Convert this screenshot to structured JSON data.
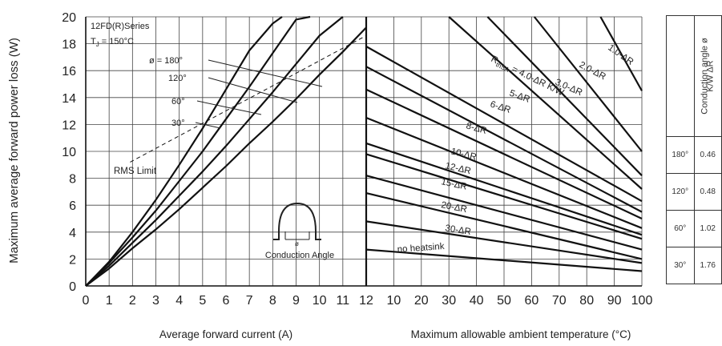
{
  "chart_data": [
    {
      "type": "line",
      "title": "",
      "xlabel": "Average forward current (A)",
      "ylabel": "Maximum average forward power loss (W)",
      "xlim": [
        0,
        12
      ],
      "ylim": [
        0,
        20
      ],
      "x_ticks": [
        "0",
        "1",
        "2",
        "3",
        "4",
        "5",
        "6",
        "7",
        "8",
        "9",
        "10",
        "11",
        "12"
      ],
      "y_ticks": [
        "0",
        "2",
        "4",
        "6",
        "8",
        "10",
        "12",
        "14",
        "16",
        "18",
        "20"
      ],
      "grid": true,
      "annotations": {
        "series_name": "12FD(R)Series",
        "tj_prefix": "T",
        "tj_sub": "J",
        "tj_value": " = 150°C",
        "rms_limit": "RMS Limit",
        "conduction_angle": "Conduction Angle",
        "phi": "ø"
      },
      "series": [
        {
          "label": "ø = 180°",
          "x": [
            0,
            1,
            2,
            3,
            4,
            5,
            6,
            7,
            8,
            9,
            10,
            11,
            12
          ],
          "y": [
            0,
            1.3,
            2.8,
            4.2,
            5.7,
            7.3,
            8.9,
            10.6,
            12.2,
            13.9,
            15.7,
            17.4,
            19.2
          ]
        },
        {
          "label": "120°",
          "x": [
            0,
            1,
            2,
            3,
            4,
            5,
            6,
            7,
            8,
            9,
            10,
            11
          ],
          "y": [
            0,
            1.5,
            3.2,
            4.9,
            6.7,
            8.5,
            10.4,
            12.4,
            14.4,
            16.5,
            18.6,
            20
          ]
        },
        {
          "label": "60°",
          "x": [
            0,
            1,
            2,
            3,
            4,
            5,
            6,
            7,
            8,
            9,
            9.6
          ],
          "y": [
            0,
            1.7,
            3.6,
            5.6,
            7.8,
            10.0,
            12.4,
            14.8,
            17.3,
            19.8,
            20
          ]
        },
        {
          "label": "30°",
          "x": [
            0,
            1,
            2,
            3,
            4,
            5,
            6,
            7,
            8,
            8.4
          ],
          "y": [
            0,
            1.8,
            4.0,
            6.4,
            9.0,
            11.7,
            14.6,
            17.5,
            19.5,
            20
          ]
        }
      ],
      "rms_limit_line": {
        "x": [
          1.9,
          12
        ],
        "y": [
          9.2,
          18.6
        ]
      }
    },
    {
      "type": "line",
      "title": "",
      "xlabel": "Maximum allowable ambient temperature (°C)",
      "xlim": [
        12,
        100
      ],
      "ylim": [
        0,
        20
      ],
      "x_ticks": [
        "12",
        "10",
        "20",
        "30",
        "40",
        "50",
        "60",
        "70",
        "80",
        "90",
        "100"
      ],
      "grid": true,
      "series": [
        {
          "label": "1.0-ΔR",
          "x": [
            85,
            100
          ],
          "y": [
            20,
            14.5
          ]
        },
        {
          "label": "2.0-ΔR",
          "x": [
            61,
            100
          ],
          "y": [
            20,
            10.0
          ]
        },
        {
          "label": "3.0-ΔR",
          "x": [
            44,
            100
          ],
          "y": [
            20,
            8.2
          ]
        },
        {
          "label": "R_thSA = 4.0-ΔR K/W",
          "x": [
            30,
            100
          ],
          "y": [
            20,
            7.2
          ]
        },
        {
          "label": "5-ΔR",
          "x": [
            12,
            100
          ],
          "y": [
            17.8,
            6.3
          ]
        },
        {
          "label": "6-ΔR",
          "x": [
            12,
            100
          ],
          "y": [
            16.3,
            5.5
          ]
        },
        {
          "label": "8-ΔR",
          "x": [
            12,
            100
          ],
          "y": [
            14.6,
            5.0
          ]
        },
        {
          "label": "10-ΔR",
          "x": [
            12,
            100
          ],
          "y": [
            12.5,
            4.3
          ]
        },
        {
          "label": "12-ΔR",
          "x": [
            12,
            100
          ],
          "y": [
            10.6,
            3.8
          ]
        },
        {
          "label": "15-ΔR",
          "x": [
            12,
            100
          ],
          "y": [
            9.8,
            3.5
          ]
        },
        {
          "label": "20-ΔR",
          "x": [
            12,
            100
          ],
          "y": [
            8.2,
            2.7
          ]
        },
        {
          "label": "30-ΔR",
          "x": [
            12,
            100
          ],
          "y": [
            6.9,
            2.0
          ]
        },
        {
          "label": "",
          "x": [
            12,
            100
          ],
          "y": [
            4.8,
            1.7
          ]
        },
        {
          "label": "no heatsink",
          "x": [
            12,
            100
          ],
          "y": [
            2.7,
            1.1
          ]
        }
      ],
      "curve_labels": {
        "rth_prefix": "R",
        "rth_sub": "thSA",
        "rth_suffix": " = 4.0-ΔR K/W"
      }
    },
    {
      "type": "table",
      "headers": [
        "Conduction angle ø",
        "K/W ΔR"
      ],
      "rows": [
        [
          "180°",
          "0.46"
        ],
        [
          "120°",
          "0.48"
        ],
        [
          "60°",
          "1.02"
        ],
        [
          "30°",
          "1.76"
        ]
      ]
    }
  ]
}
